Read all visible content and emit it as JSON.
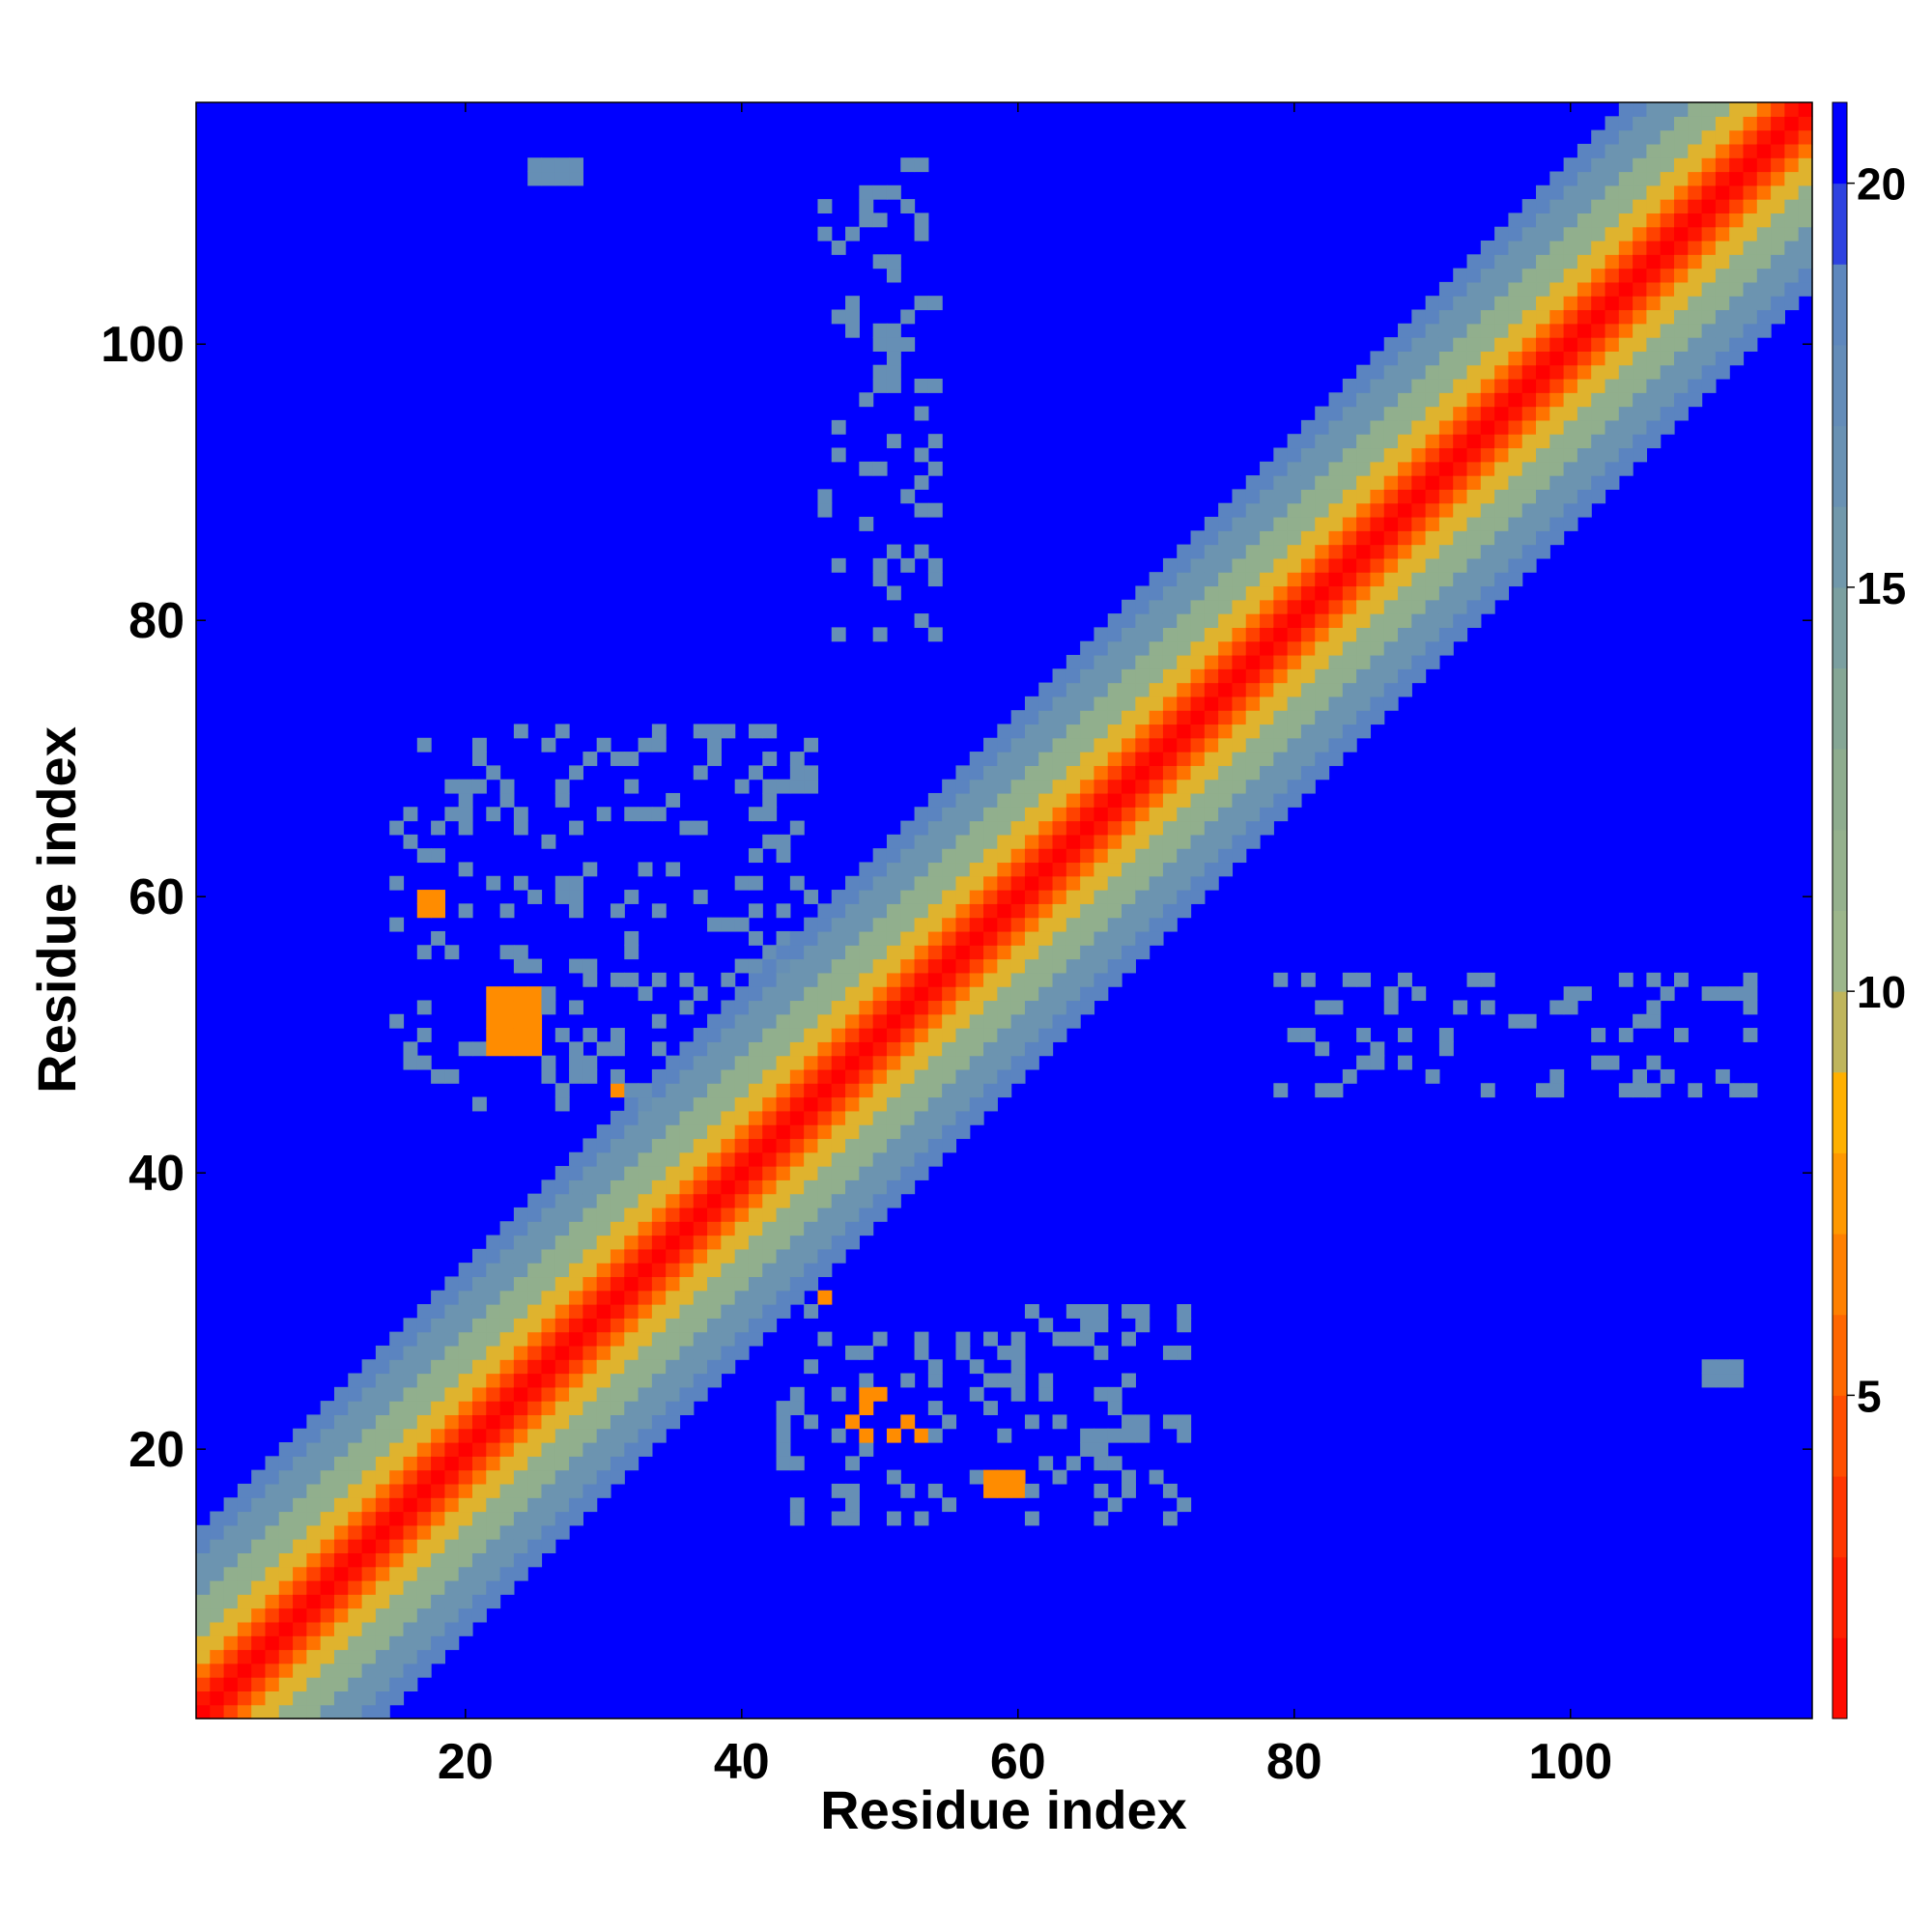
{
  "chart_data": {
    "type": "heatmap",
    "title": "",
    "xlabel": "Residue index",
    "ylabel": "Residue index",
    "xlim": [
      1,
      117
    ],
    "ylim": [
      1,
      117
    ],
    "x_ticks": [
      20,
      40,
      60,
      80,
      100
    ],
    "y_ticks": [
      20,
      40,
      60,
      80,
      100
    ],
    "n_residues": 117,
    "grid": false,
    "colorbar": {
      "placement": "right",
      "range": [
        1,
        21
      ],
      "ticks": [
        5,
        10,
        15,
        20
      ],
      "stops": [
        {
          "value": 1,
          "color": "#ff0000"
        },
        {
          "value": 3,
          "color": "#ff2a00"
        },
        {
          "value": 5,
          "color": "#ff5a00"
        },
        {
          "value": 7,
          "color": "#ff8c00"
        },
        {
          "value": 8.5,
          "color": "#ffb000"
        },
        {
          "value": 10,
          "color": "#9fb88a"
        },
        {
          "value": 13,
          "color": "#8aaa8f"
        },
        {
          "value": 16,
          "color": "#6c94b0"
        },
        {
          "value": 19,
          "color": "#5b84c0"
        },
        {
          "value": 20,
          "color": "#0000ff"
        },
        {
          "value": 21,
          "color": "#0000ff"
        }
      ]
    },
    "description_values": {
      "diagonal_distance": 1,
      "background_distance": 21
    },
    "contact_features": [
      {
        "i_range": [
          15,
          45
        ],
        "j_range": [
          45,
          72
        ],
        "distance": 17
      },
      {
        "i_range": [
          43,
          72
        ],
        "j_range": [
          15,
          30
        ],
        "distance": 17
      },
      {
        "i_range": [
          17,
          18
        ],
        "j_range": [
          59,
          60
        ],
        "distance": 7
      },
      {
        "i_range": [
          22,
          25
        ],
        "j_range": [
          49,
          53
        ],
        "distance": 7
      },
      {
        "i_range": [
          48,
          53
        ],
        "j_range": [
          21,
          25
        ],
        "distance": 7
      },
      {
        "i_range": [
          58,
          60
        ],
        "j_range": [
          17,
          18
        ],
        "distance": 7
      },
      {
        "i_range": [
          31,
          31
        ],
        "j_range": [
          46,
          46
        ],
        "distance": 7
      },
      {
        "i_range": [
          46,
          46
        ],
        "j_range": [
          31,
          31
        ],
        "distance": 7
      },
      {
        "i_range": [
          46,
          54
        ],
        "j_range": [
          79,
          113
        ],
        "distance": 17
      },
      {
        "i_range": [
          79,
          113
        ],
        "j_range": [
          46,
          54
        ],
        "distance": 17
      },
      {
        "i_range": [
          25,
          28
        ],
        "j_range": [
          112,
          113
        ],
        "distance": 17
      },
      {
        "i_range": [
          110,
          112
        ],
        "j_range": [
          25,
          26
        ],
        "distance": 17
      }
    ]
  }
}
